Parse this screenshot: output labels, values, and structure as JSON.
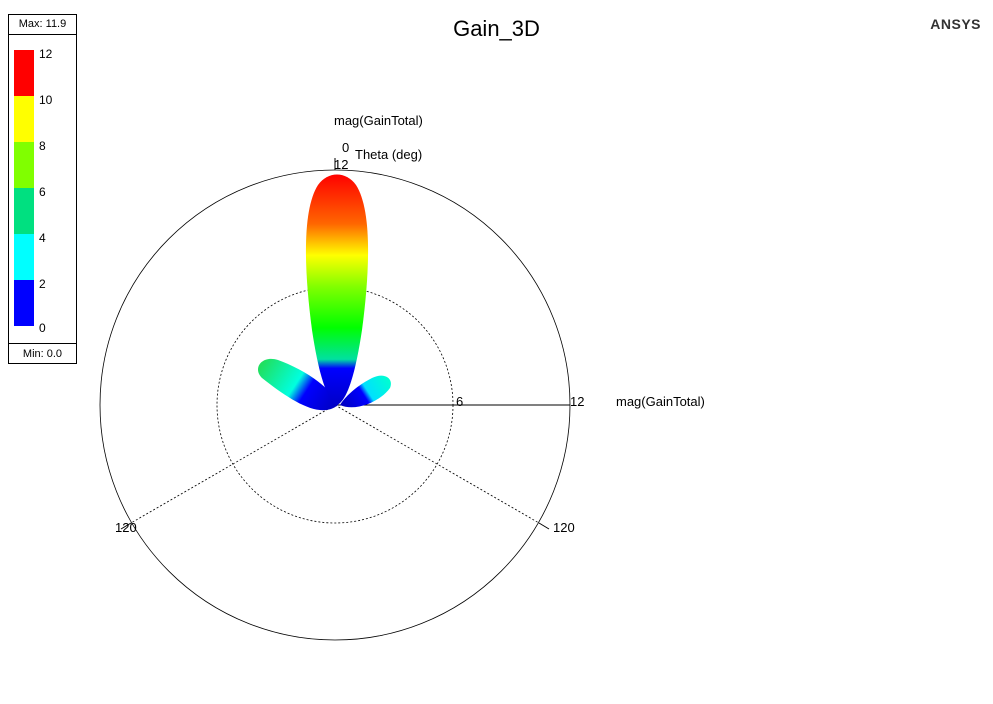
{
  "title": "Gain_3D",
  "brand": "ANSYS",
  "legend": {
    "max_label": "Max: 11.9",
    "min_label": "Min: 0.0",
    "ticks": [
      "12",
      "10",
      "8",
      "6",
      "4",
      "2",
      "0"
    ],
    "colors": [
      "#ff0000",
      "#ffff00",
      "#80ff00",
      "#00e080",
      "#00ffff",
      "#0000ff"
    ]
  },
  "chart_data": {
    "type": "line",
    "title": "Gain_3D",
    "radial_label": "mag(GainTotal)",
    "angle_label": "Theta (deg)",
    "radial_ticks": [
      "6",
      "12"
    ],
    "radial_range": [
      0,
      12
    ],
    "angle_ticks": [
      "0",
      "120",
      "120"
    ],
    "max": 11.9,
    "min": 0.0,
    "lobes": [
      {
        "theta_deg": 0,
        "gain": 11.9
      },
      {
        "theta_deg": -45,
        "gain": 4.5
      },
      {
        "theta_deg": 60,
        "gain": 2.5
      }
    ]
  }
}
